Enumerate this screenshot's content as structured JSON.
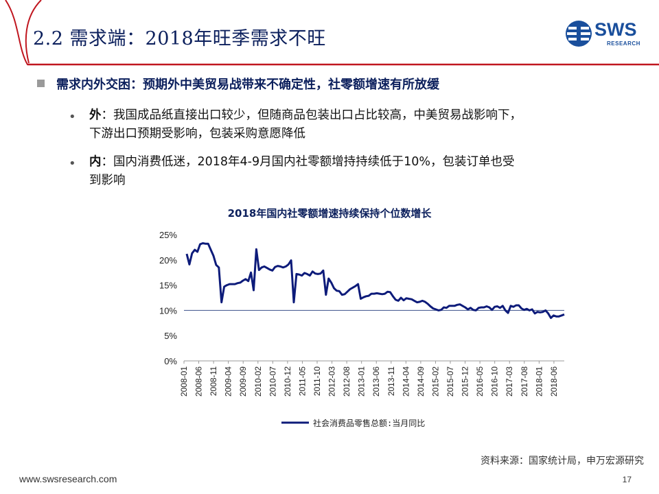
{
  "slide": {
    "title": "2.2 需求端：2018年旺季需求不旺",
    "logo_text": "SWS",
    "logo_sub": "RESEARCH",
    "main_point": "需求内外交困：预期外中美贸易战带来不确定性，社零额增速有所放缓",
    "points": [
      {
        "label": "外",
        "text": "：我国成品纸直接出口较少，但随商品包装出口占比较高，中美贸易战影响下，",
        "text2": "下游出口预期受影响，包装采购意愿降低"
      },
      {
        "label": "内",
        "text": "：国内消费低迷，2018年4-9月国内社零额增持持续低于10%，包装订单也受",
        "text2": "到影响"
      }
    ],
    "source": "资料来源：国家统计局，申万宏源研究",
    "footer_url": "www.swsresearch.com",
    "page_number": "17",
    "colors": {
      "title": "#0b1f5c",
      "accent_red": "#c0161f",
      "series": "#0d1b7a",
      "logo": "#1a4f9c"
    }
  },
  "chart_data": {
    "type": "line",
    "title": "2018年国内社零额增速持续保持个位数增长",
    "y_ticks": [
      "0%",
      "5%",
      "10%",
      "15%",
      "20%",
      "25%"
    ],
    "ylim": [
      0,
      25
    ],
    "reference_line": 10,
    "x_ticks": [
      "2008-01",
      "2008-06",
      "2008-11",
      "2009-04",
      "2009-09",
      "2010-02",
      "2010-07",
      "2010-12",
      "2011-05",
      "2011-10",
      "2012-03",
      "2012-08",
      "2013-01",
      "2013-06",
      "2013-11",
      "2014-04",
      "2014-09",
      "2015-02",
      "2015-07",
      "2015-12",
      "2016-05",
      "2016-10",
      "2017-03",
      "2017-08",
      "2018-01",
      "2018-06"
    ],
    "series": [
      {
        "name": "社会消费品零售总额:当月同比",
        "values": [
          21.2,
          19.1,
          21.3,
          22.0,
          21.6,
          23.1,
          23.3,
          23.2,
          23.2,
          22.0,
          20.8,
          19.0,
          18.5,
          11.6,
          14.7,
          15.0,
          15.2,
          15.2,
          15.2,
          15.4,
          15.5,
          15.9,
          16.2,
          15.8,
          17.5,
          14.0,
          22.1,
          18.0,
          18.5,
          18.7,
          18.4,
          18.1,
          17.9,
          18.6,
          18.8,
          18.7,
          18.5,
          18.7,
          19.1,
          19.9,
          11.6,
          17.2,
          17.1,
          16.9,
          17.4,
          17.2,
          16.9,
          17.7,
          17.3,
          17.2,
          17.3,
          17.9,
          13.1,
          16.3,
          15.5,
          14.4,
          13.9,
          13.8,
          13.1,
          13.2,
          13.7,
          14.2,
          14.5,
          14.8,
          15.2,
          12.3,
          12.6,
          12.8,
          12.9,
          13.3,
          13.3,
          13.4,
          13.3,
          13.2,
          13.3,
          13.7,
          13.6,
          12.8,
          12.1,
          11.9,
          12.5,
          12.0,
          12.4,
          12.3,
          12.2,
          11.9,
          11.6,
          11.7,
          11.9,
          11.7,
          11.3,
          10.8,
          10.4,
          10.2,
          10.0,
          10.1,
          10.6,
          10.5,
          10.9,
          10.9,
          10.9,
          11.1,
          11.2,
          10.9,
          10.6,
          10.2,
          10.5,
          10.1,
          10.0,
          10.5,
          10.6,
          10.6,
          10.8,
          10.6,
          10.1,
          10.7,
          10.8,
          10.5,
          10.9,
          10.0,
          9.5,
          10.9,
          10.7,
          11.0,
          11.0,
          10.4,
          10.1,
          10.3,
          10.0,
          10.2,
          9.4,
          9.7,
          9.6,
          9.7,
          10.0,
          9.4,
          8.5,
          9.0,
          8.8,
          8.8,
          9.0,
          9.2
        ]
      }
    ],
    "legend_position": "bottom",
    "grid": false
  }
}
